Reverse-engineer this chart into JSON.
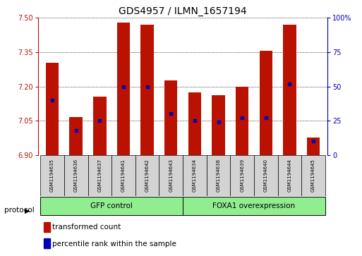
{
  "title": "GDS4957 / ILMN_1657194",
  "samples": [
    "GSM1194635",
    "GSM1194636",
    "GSM1194637",
    "GSM1194641",
    "GSM1194642",
    "GSM1194643",
    "GSM1194634",
    "GSM1194638",
    "GSM1194639",
    "GSM1194640",
    "GSM1194644",
    "GSM1194645"
  ],
  "transformed_counts": [
    7.305,
    7.065,
    7.155,
    7.48,
    7.47,
    7.225,
    7.175,
    7.16,
    7.2,
    7.355,
    7.47,
    6.975
  ],
  "percentile_ranks_pct": [
    40,
    18,
    25,
    50,
    50,
    30,
    25,
    24,
    27,
    27,
    52,
    10
  ],
  "ylim_left": [
    6.9,
    7.5
  ],
  "ylim_right": [
    0,
    100
  ],
  "yticks_left": [
    6.9,
    7.05,
    7.2,
    7.35,
    7.5
  ],
  "yticks_right": [
    0,
    25,
    50,
    75,
    100
  ],
  "bar_bottom": 6.9,
  "bar_color": "#bb1100",
  "dot_color": "#0000bb",
  "bar_width": 0.55,
  "gfp_label": "GFP control",
  "foxa1_label": "FOXA1 overexpression",
  "group_color": "#90ee90",
  "label_box_color": "#d3d3d3",
  "protocol_label": "protocol",
  "legend_items": [
    {
      "label": "transformed count",
      "color": "#bb1100"
    },
    {
      "label": "percentile rank within the sample",
      "color": "#0000bb"
    }
  ]
}
